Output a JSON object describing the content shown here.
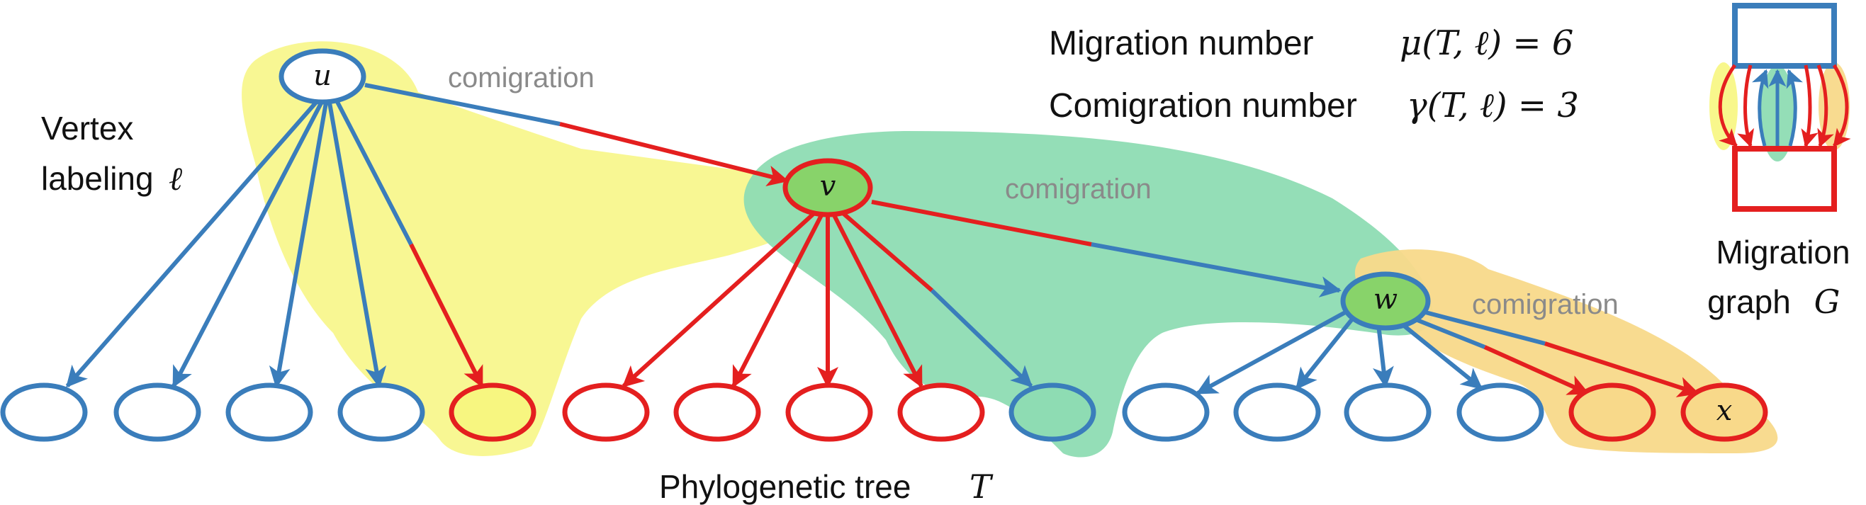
{
  "colors": {
    "blue": "#3a7dbb",
    "red": "#e41f1f",
    "yellow_region": "#f7f680",
    "green_region": "#8edcb3",
    "orange_region": "#f8d98a",
    "green_node": "#88d36a",
    "gray_text": "#8a8a8a"
  },
  "labels": {
    "vertex_labeling_line1": "Vertex",
    "vertex_labeling_line2": "labeling",
    "vertex_labeling_symbol": "ℓ",
    "comigration": "comigration",
    "migration_number_text": "Migration number",
    "migration_number_formula": "μ(T, ℓ) = 6",
    "comigration_number_text": "Comigration number",
    "comigration_number_formula": "γ(T, ℓ) = 3",
    "migration_graph_line1": "Migration",
    "migration_graph_line2": "graph",
    "migration_graph_symbol": "G",
    "tree_caption": "Phylogenetic tree",
    "tree_symbol": "T"
  },
  "nodes": {
    "u": "u",
    "v": "v",
    "w": "w",
    "x": "x"
  }
}
